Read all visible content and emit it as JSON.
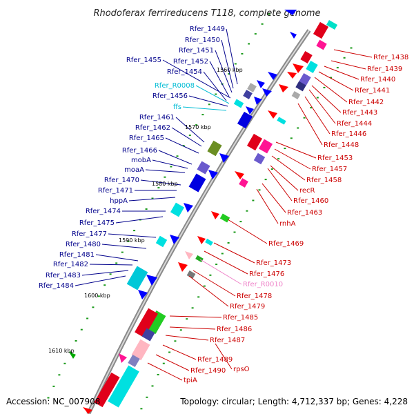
{
  "title": "Rhodoferax ferrireducens T118, complete genome",
  "accession_text": "Accession: NC_007908",
  "summary_text": "Topology: circular; Length: 4,712,337 bp; Genes: 4,228",
  "colors": {
    "left_strand_label": "#00008b",
    "right_strand_label": "#cc0000",
    "rna_left_label": "#00bcd4",
    "rna_right_label": "#ee82c8"
  },
  "kbp_marks": [
    "1560 kbp",
    "1570 kbp",
    "1580 kbp",
    "1590 kbp",
    "1600 kbp",
    "1610 kbp"
  ],
  "left_labels": [
    "Rfer_1449",
    "Rfer_1450",
    "Rfer_1451",
    "Rfer_1452",
    "Rfer_1455",
    "Rfer_1454",
    "Rfer_R0008",
    "Rfer_1456",
    "ffs",
    "Rfer_1461",
    "Rfer_1462",
    "Rfer_1465",
    "Rfer_1466",
    "mobA",
    "moaA",
    "Rfer_1470",
    "Rfer_1471",
    "hppA",
    "Rfer_1474",
    "Rfer_1475",
    "Rfer_1477",
    "Rfer_1480",
    "Rfer_1481",
    "Rfer_1482",
    "Rfer_1483",
    "Rfer_1484"
  ],
  "right_labels": [
    "Rfer_1438",
    "Rfer_1439",
    "Rfer_1440",
    "Rfer_1441",
    "Rfer_1442",
    "Rfer_1443",
    "Rfer_1444",
    "Rfer_1446",
    "Rfer_1448",
    "Rfer_1453",
    "Rfer_1457",
    "Rfer_1458",
    "recR",
    "Rfer_1460",
    "Rfer_1463",
    "rnhA",
    "Rfer_1469",
    "Rfer_1473",
    "Rfer_1476",
    "Rfer_R0010",
    "Rfer_1478",
    "Rfer_1479",
    "Rfer_1485",
    "Rfer_1486",
    "Rfer_1487",
    "Rfer_1489",
    "rpsO",
    "Rfer_1490",
    "tpiA"
  ]
}
